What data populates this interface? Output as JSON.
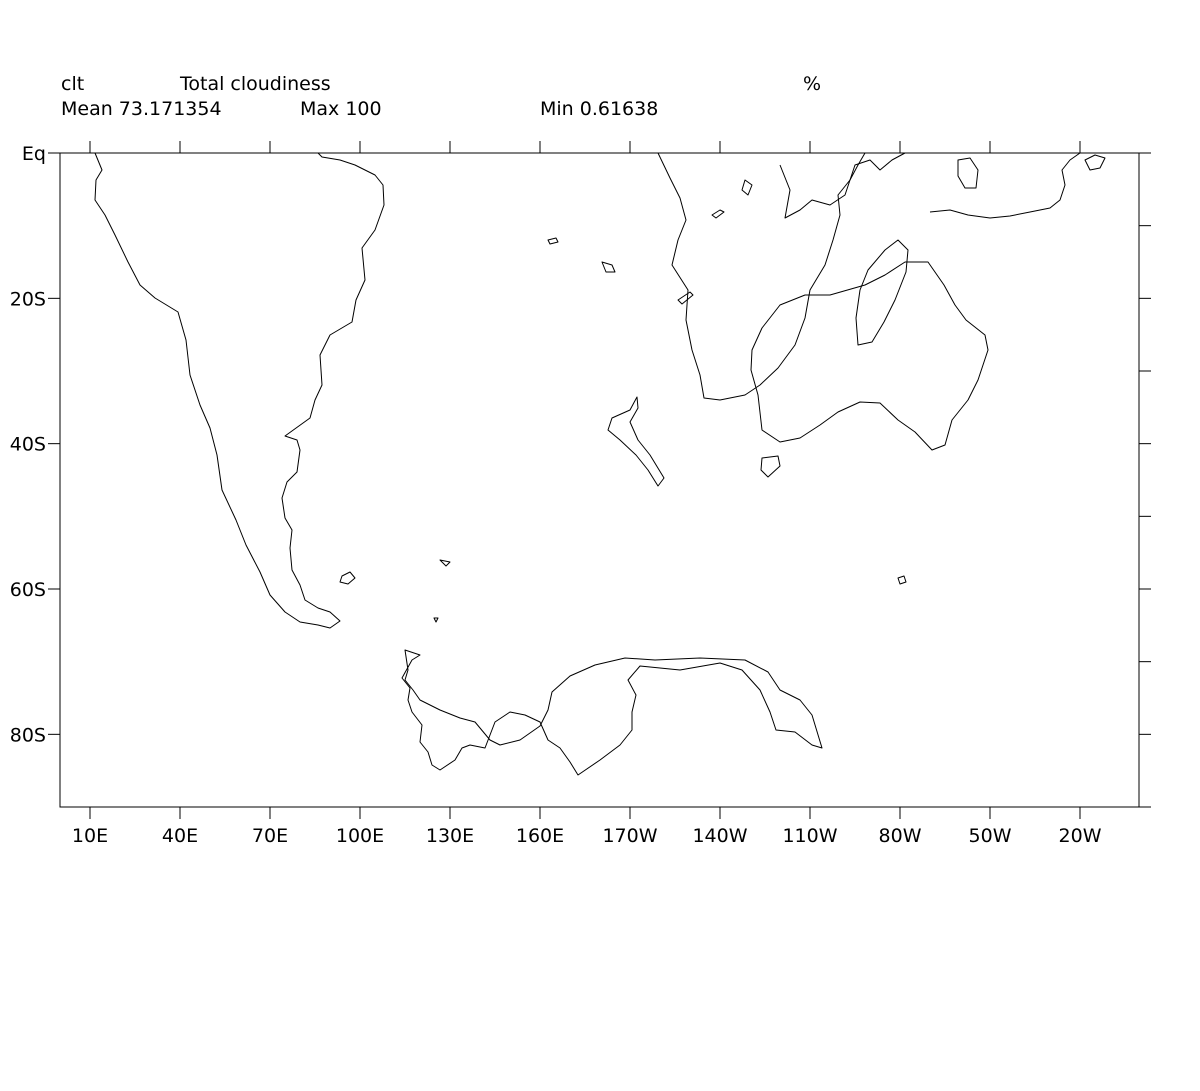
{
  "header": {
    "variable": "clt",
    "long_name": "Total cloudiness",
    "units": "%",
    "mean_label": "Mean 73.171354",
    "max_label": "Max 100",
    "min_label": "Min 0.61638"
  },
  "axes": {
    "y_ticks": [
      "Eq",
      "20S",
      "40S",
      "60S",
      "80S"
    ],
    "x_ticks": [
      "10E",
      "40E",
      "70E",
      "100E",
      "130E",
      "160E",
      "170W",
      "140W",
      "110W",
      "80W",
      "50W",
      "20W"
    ]
  },
  "style": {
    "line_color": "#000000",
    "background": "#ffffff"
  }
}
